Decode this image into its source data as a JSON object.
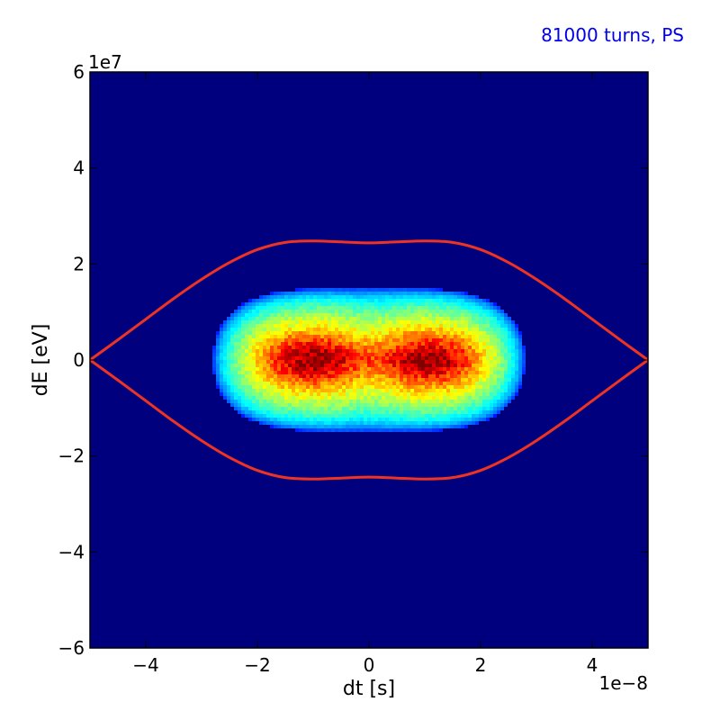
{
  "chart_data": {
    "type": "heatmap",
    "annotation": "81000 turns, PS",
    "xlabel": "dt [s]",
    "ylabel": "dE [eV]",
    "x_offset_label": "1e−8",
    "y_offset_label": "1e7",
    "xlim": [
      -5e-08,
      5e-08
    ],
    "ylim": [
      -60000000.0,
      60000000.0
    ],
    "x_ticks": [
      {
        "value": -4e-08,
        "label": "−4"
      },
      {
        "value": -2e-08,
        "label": "−2"
      },
      {
        "value": 0,
        "label": "0"
      },
      {
        "value": 2e-08,
        "label": "2"
      },
      {
        "value": 4e-08,
        "label": "4"
      }
    ],
    "y_ticks": [
      {
        "value": -60000000.0,
        "label": "−6"
      },
      {
        "value": -40000000.0,
        "label": "−4"
      },
      {
        "value": -20000000.0,
        "label": "−2"
      },
      {
        "value": 0,
        "label": "0"
      },
      {
        "value": 20000000.0,
        "label": "2"
      },
      {
        "value": 40000000.0,
        "label": "4"
      },
      {
        "value": 60000000.0,
        "label": "6"
      }
    ],
    "colormap": "jet",
    "background_color": "#00007f",
    "separatrix_color": "#ee3322",
    "annotation_color": "#0000ee",
    "separatrix": [
      {
        "dt": -5e-08,
        "dE": 0
      },
      {
        "dt": -4.5e-08,
        "dE": 4200000.0
      },
      {
        "dt": -4e-08,
        "dE": 8500000.0
      },
      {
        "dt": -3.5e-08,
        "dE": 12800000.0
      },
      {
        "dt": -3e-08,
        "dE": 16800000.0
      },
      {
        "dt": -2.5e-08,
        "dE": 20300000.0
      },
      {
        "dt": -2e-08,
        "dE": 23000000.0
      },
      {
        "dt": -1.5e-08,
        "dE": 24500000.0
      },
      {
        "dt": -1e-08,
        "dE": 24800000.0
      },
      {
        "dt": -5e-09,
        "dE": 24600000.0
      },
      {
        "dt": 0,
        "dE": 24400000.0
      },
      {
        "dt": 5e-09,
        "dE": 24600000.0
      },
      {
        "dt": 1e-08,
        "dE": 24800000.0
      },
      {
        "dt": 1.5e-08,
        "dE": 24500000.0
      },
      {
        "dt": 2e-08,
        "dE": 23000000.0
      },
      {
        "dt": 2.5e-08,
        "dE": 20300000.0
      },
      {
        "dt": 3e-08,
        "dE": 16800000.0
      },
      {
        "dt": 3.5e-08,
        "dE": 12800000.0
      },
      {
        "dt": 4e-08,
        "dE": 8500000.0
      },
      {
        "dt": 4.5e-08,
        "dE": 4200000.0
      },
      {
        "dt": 5e-08,
        "dE": 0
      }
    ],
    "distribution": {
      "dt_half_width": 2.8e-08,
      "dE_half_width": 15000000.0,
      "core_dt_half_width": 2e-08,
      "core_dE_half_width": 7000000.0,
      "peak_dt": [
        -1.2e-08,
        1.3e-08
      ]
    }
  }
}
